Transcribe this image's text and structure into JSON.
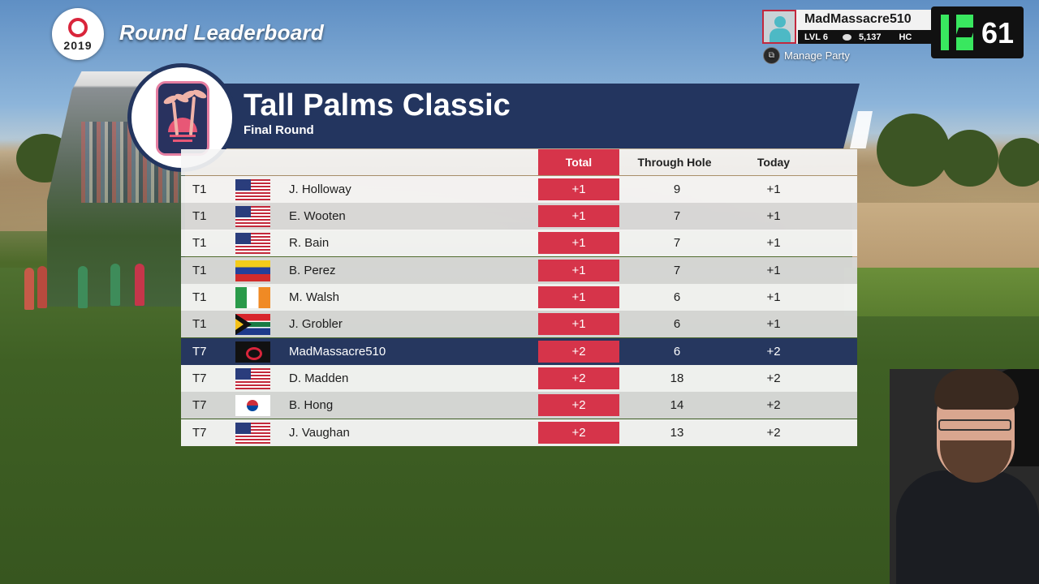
{
  "header": {
    "logo_year": "2019",
    "title": "Round Leaderboard"
  },
  "player_card": {
    "name": "MadMassacre510",
    "level": "LVL 6",
    "coins": "5,137",
    "extra": "HC",
    "manage_label": "Manage Party"
  },
  "stream_badge": {
    "number": "61",
    "accent_color": "#39e75f"
  },
  "event": {
    "name": "Tall Palms Classic",
    "round": "Final Round",
    "banner_color": "#23355f"
  },
  "table": {
    "headers": {
      "total": "Total",
      "through": "Through Hole",
      "today": "Today"
    },
    "total_color": "#d6344a",
    "rows": [
      {
        "pos": "T1",
        "flag": "us-flag",
        "name": "J. Holloway",
        "total": "+1",
        "through": "9",
        "today": "+1"
      },
      {
        "pos": "T1",
        "flag": "us-flag",
        "name": "E. Wooten",
        "total": "+1",
        "through": "7",
        "today": "+1"
      },
      {
        "pos": "T1",
        "flag": "us-flag",
        "name": "R. Bain",
        "total": "+1",
        "through": "7",
        "today": "+1"
      },
      {
        "pos": "T1",
        "flag": "venezuela-flag",
        "name": "B. Perez",
        "total": "+1",
        "through": "7",
        "today": "+1"
      },
      {
        "pos": "T1",
        "flag": "ireland-flag",
        "name": "M. Walsh",
        "total": "+1",
        "through": "6",
        "today": "+1"
      },
      {
        "pos": "T1",
        "flag": "south-africa-flag",
        "name": "J. Grobler",
        "total": "+1",
        "through": "6",
        "today": "+1"
      },
      {
        "pos": "T7",
        "flag": "player-logo-flag",
        "name": "MadMassacre510",
        "total": "+2",
        "through": "6",
        "today": "+2"
      },
      {
        "pos": "T7",
        "flag": "us-flag",
        "name": "D. Madden",
        "total": "+2",
        "through": "18",
        "today": "+2"
      },
      {
        "pos": "T7",
        "flag": "south-korea-flag",
        "name": "B. Hong",
        "total": "+2",
        "through": "14",
        "today": "+2"
      },
      {
        "pos": "T7",
        "flag": "us-flag",
        "name": "J. Vaughan",
        "total": "+2",
        "through": "13",
        "today": "+2"
      }
    ]
  }
}
